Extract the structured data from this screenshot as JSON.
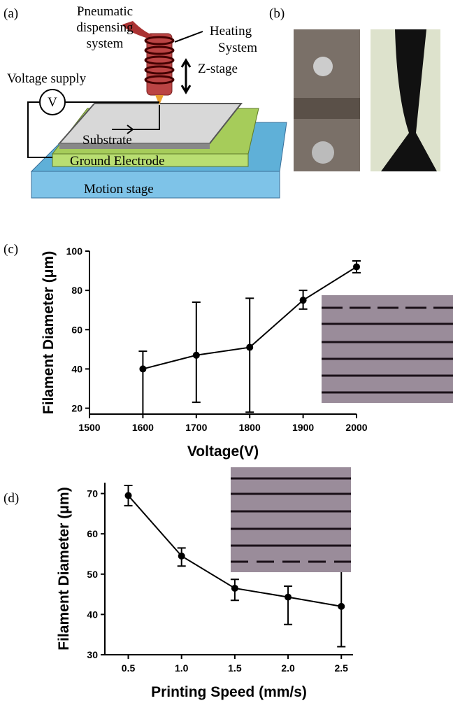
{
  "panels": {
    "a": {
      "label": "(a)",
      "dispenser": [
        "Pneumatic",
        "dispensing",
        "system"
      ],
      "heater": [
        "Heating",
        "System"
      ],
      "zstage": "Z-stage",
      "voltage": "Voltage supply",
      "meter": "V",
      "substrate": "Substrate",
      "electrode": "Ground Electrode",
      "stage": "Motion stage"
    },
    "b": {
      "label": "(b)"
    },
    "c": {
      "label": "(c)"
    },
    "d": {
      "label": "(d)"
    }
  },
  "chart_data": [
    {
      "type": "line",
      "x_label": "Voltage(V)",
      "y_label": "Filament Diameter (μm)",
      "x": [
        1600,
        1700,
        1800,
        1900,
        2000
      ],
      "values": [
        40,
        47,
        51,
        75,
        92
      ],
      "error_minus": [
        24,
        24,
        33,
        4.5,
        3
      ],
      "error_plus": [
        9,
        27,
        25,
        5,
        3
      ],
      "color": "#000000",
      "xlim": [
        1500,
        2000
      ],
      "xticks": [
        1500,
        1600,
        1700,
        1800,
        1900,
        2000
      ],
      "ylim": [
        17,
        100
      ],
      "yticks": [
        20,
        40,
        60,
        80,
        100
      ]
    },
    {
      "type": "line",
      "x_label": "Printing Speed (mm/s)",
      "y_label": "Filament Diameter (μm)",
      "x": [
        0.5,
        1,
        1.5,
        2,
        2.5
      ],
      "values": [
        69.5,
        54.5,
        46.5,
        44.3,
        42
      ],
      "error_minus": [
        2.5,
        2.5,
        3,
        6.8,
        10
      ],
      "error_plus": [
        2.5,
        2,
        2.2,
        2.7,
        12
      ],
      "color": "#000000",
      "xlim": [
        0.28,
        2.61
      ],
      "xticks": [
        0.5,
        {
          "value": 1,
          "label": "1.0"
        },
        1.5,
        {
          "value": 2,
          "label": "2.0"
        },
        2.5
      ],
      "ylim": [
        30,
        72.7
      ],
      "yticks": [
        30,
        40,
        50,
        60,
        70
      ]
    }
  ]
}
